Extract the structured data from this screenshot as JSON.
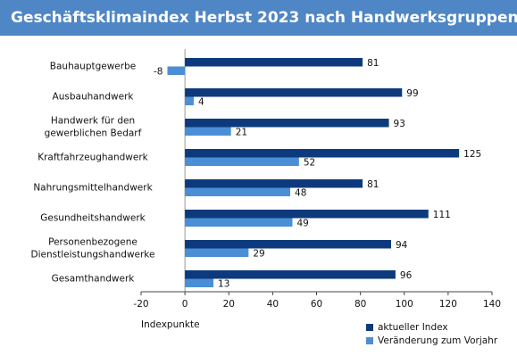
{
  "chart_data": {
    "type": "bar",
    "orientation": "horizontal",
    "title": "Geschäftsklimaindex Herbst 2023 nach Handwerksgruppen",
    "x_label": "Indexpunkte",
    "categories": [
      [
        "Bauhauptgewerbe"
      ],
      [
        "Ausbauhandwerk"
      ],
      [
        "Handwerk für den",
        "gewerblichen Bedarf"
      ],
      [
        "Kraftfahrzeughandwerk"
      ],
      [
        "Nahrungsmittelhandwerk"
      ],
      [
        "Gesundheitshandwerk"
      ],
      [
        "Personenbezogene",
        "Dienstleistungshandwerke"
      ],
      [
        "Gesamthandwerk"
      ]
    ],
    "series": [
      {
        "name": "aktueller Index",
        "color": "#0d3a7c",
        "values": [
          81,
          99,
          93,
          125,
          81,
          111,
          94,
          96
        ]
      },
      {
        "name": "Veränderung zum Vorjahr",
        "color": "#4a8fd6",
        "values": [
          -8,
          4,
          21,
          52,
          48,
          49,
          29,
          13
        ]
      }
    ],
    "xlim": [
      -20,
      140
    ],
    "xticks": [
      -20,
      0,
      20,
      40,
      60,
      80,
      100,
      120,
      140
    ]
  }
}
